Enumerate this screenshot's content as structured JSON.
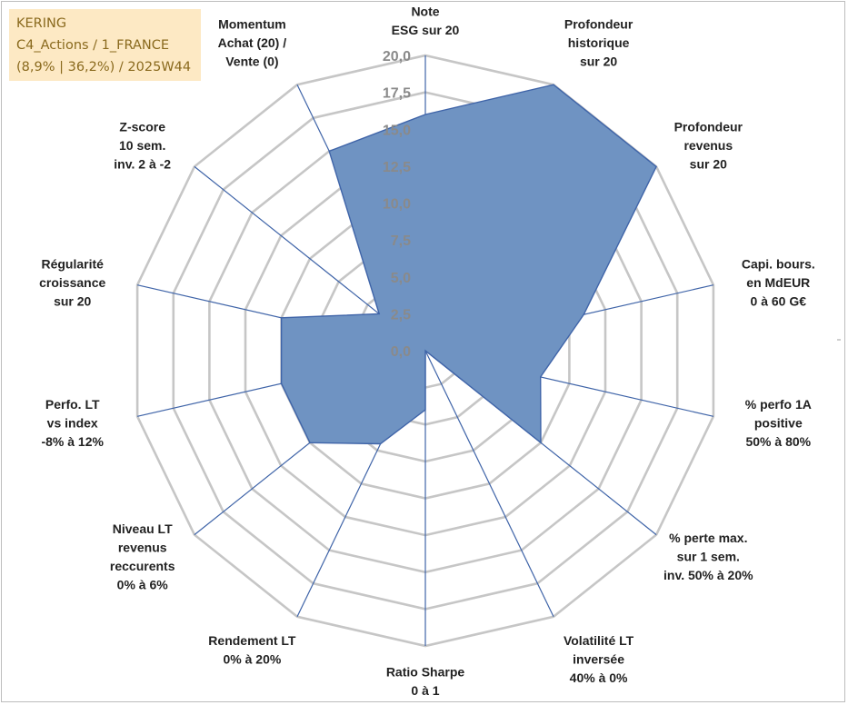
{
  "info": {
    "line1": "KERING",
    "line2": "C4_Actions / 1_FRANCE",
    "line3": "(8,9% | 36,2%) / 2025W44"
  },
  "chart_data": {
    "type": "radar",
    "title": "",
    "rmin": 0,
    "rmax": 20,
    "grid": true,
    "tick_labels": [
      "0,0",
      "2,5",
      "5,0",
      "7,5",
      "10,0",
      "12,5",
      "15,0",
      "17,5",
      "20,0"
    ],
    "axes": [
      [
        "Note",
        "ESG sur 20"
      ],
      [
        "Profondeur",
        "historique",
        "sur 20"
      ],
      [
        "Profondeur",
        "revenus",
        "sur 20"
      ],
      [
        "Capi. bours.",
        "en MdEUR",
        "0 à 60 G€"
      ],
      [
        "% perfo 1A",
        "positive",
        "50% à 80%"
      ],
      [
        "% perte max.",
        "sur 1 sem.",
        "inv. 50% à 20%"
      ],
      [
        "Volatilité LT",
        "inversée",
        "40% à 0%"
      ],
      [
        "Ratio Sharpe",
        "0 à 1"
      ],
      [
        "Rendement LT",
        "0% à 20%"
      ],
      [
        "Niveau LT",
        "revenus",
        "reccurents",
        "0% à 6%"
      ],
      [
        "Perfo. LT",
        "vs index",
        "-8% à 12%"
      ],
      [
        "Régularité",
        "croissance",
        "sur 20"
      ],
      [
        "Z-score",
        "10 sem.",
        "inv. 2 à -2"
      ],
      [
        "Momentum",
        "Achat (20) /",
        "Vente (0)"
      ]
    ],
    "series": [
      {
        "name": "KERING",
        "values": [
          16,
          20,
          20,
          11,
          8,
          10,
          0,
          4,
          7,
          10,
          10,
          10,
          4,
          15
        ],
        "color": "#6f93c2",
        "stroke": "#3f64a8"
      }
    ]
  }
}
